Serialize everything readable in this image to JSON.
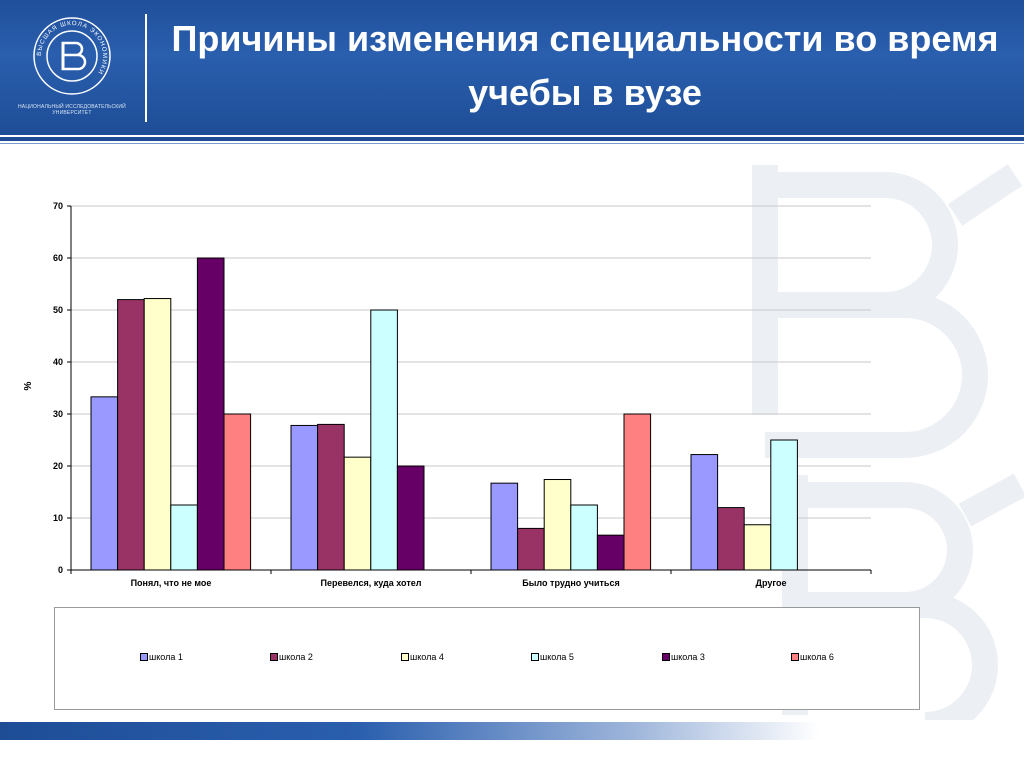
{
  "header": {
    "title": "Причины изменения специальности во время учебы в вузе",
    "logo_ring_text": "ВЫСШАЯ ШКОЛА ЭКОНОМИКИ",
    "logo_caption": "НАЦИОНАЛЬНЫЙ ИССЛЕДОВАТЕЛЬСКИЙ УНИВЕРСИТЕТ"
  },
  "colors": {
    "header": "#1f4f9a",
    "school1": "#9999ff",
    "school2": "#993366",
    "school4": "#ffffcc",
    "school5": "#ccffff",
    "school3": "#660066",
    "school6": "#ff8080"
  },
  "chart_data": {
    "type": "bar",
    "ylabel": "%",
    "ylim": [
      0,
      70
    ],
    "yticks": [
      0,
      10,
      20,
      30,
      40,
      50,
      60,
      70
    ],
    "grid": true,
    "legend_position": "bottom",
    "categories": [
      "Понял, что не мое",
      "Перевелся, куда хотел",
      "Было трудно учиться",
      "Другое"
    ],
    "series": [
      {
        "name": "школа 1",
        "color": "#9999ff",
        "values": [
          33.3,
          27.8,
          16.7,
          22.2
        ]
      },
      {
        "name": "школа 2",
        "color": "#993366",
        "values": [
          52,
          28,
          8,
          12
        ]
      },
      {
        "name": "школа 4",
        "color": "#ffffcc",
        "values": [
          52.2,
          21.7,
          17.4,
          8.7
        ]
      },
      {
        "name": "школа 5",
        "color": "#ccffff",
        "values": [
          12.5,
          50,
          12.5,
          25
        ]
      },
      {
        "name": "школа 3",
        "color": "#660066",
        "values": [
          60,
          20,
          6.7,
          null
        ]
      },
      {
        "name": "школа 6",
        "color": "#ff8080",
        "values": [
          30,
          null,
          30,
          null
        ]
      }
    ]
  }
}
